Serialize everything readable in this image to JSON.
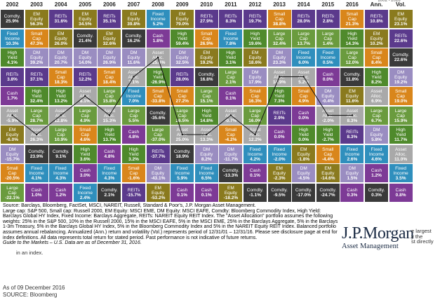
{
  "chart_data": {
    "type": "table",
    "years": [
      "2002",
      "2003",
      "2004",
      "2005",
      "2006",
      "2007",
      "2008",
      "2009",
      "2010",
      "2011",
      "2012",
      "2013",
      "2014",
      "2015",
      "2016"
    ],
    "summary_headers": [
      "Ann.",
      "Vol."
    ],
    "header_clip": "2002 - 2016",
    "asset_colors": {
      "REITs": "#5b3a8c",
      "EM Equity": "#8a7a1e",
      "Small Cap": "#d9861b",
      "Comdty.": "#3a3a3a",
      "Fixed Income": "#2f8fbd",
      "DM Equity": "#9a8dc1",
      "High Yield": "#4f8a2c",
      "Asset Alloc.": "#a9a9a9",
      "Large Cap": "#6a9b3e",
      "Cash": "#7d3a96"
    },
    "columns": [
      {
        "year": "2002",
        "cells": [
          {
            "a": "Comdty.",
            "v": "25.9%"
          },
          {
            "a": "Fixed Income",
            "v": "10.3%"
          },
          {
            "a": "High Yield",
            "v": "4.1%"
          },
          {
            "a": "REITs",
            "v": "3.8%"
          },
          {
            "a": "Cash",
            "v": "1.7%"
          },
          {
            "a": "Asset Alloc.",
            "v": "-5.9%"
          },
          {
            "a": "EM Equity",
            "v": "-6.0%"
          },
          {
            "a": "DM Equity",
            "v": "-15.7%"
          },
          {
            "a": "Small Cap",
            "v": "-20.5%"
          },
          {
            "a": "Large Cap",
            "v": "-22.1%"
          }
        ]
      },
      {
        "year": "2003",
        "cells": [
          {
            "a": "EM Equity",
            "v": "56.3%"
          },
          {
            "a": "Small Cap",
            "v": "47.3%"
          },
          {
            "a": "DM Equity",
            "v": "39.2%"
          },
          {
            "a": "REITs",
            "v": "37.1%"
          },
          {
            "a": "High Yield",
            "v": "32.4%"
          },
          {
            "a": "Large Cap",
            "v": "28.7%"
          },
          {
            "a": "Asset Alloc.",
            "v": "26.3%"
          },
          {
            "a": "Comdty.",
            "v": "23.9%"
          },
          {
            "a": "Fixed Income",
            "v": "4.1%"
          },
          {
            "a": "Cash",
            "v": "1.0%"
          }
        ]
      },
      {
        "year": "2004",
        "cells": [
          {
            "a": "REITs",
            "v": "31.6%"
          },
          {
            "a": "EM Equity",
            "v": "26.0%"
          },
          {
            "a": "DM Equity",
            "v": "20.7%"
          },
          {
            "a": "Small Cap",
            "v": "18.3%"
          },
          {
            "a": "High Yield",
            "v": "13.2%"
          },
          {
            "a": "Asset Alloc.",
            "v": "12.8%"
          },
          {
            "a": "Large Cap",
            "v": "10.9%"
          },
          {
            "a": "Comdty.",
            "v": "9.1%"
          },
          {
            "a": "Fixed Income",
            "v": "4.3%"
          },
          {
            "a": "Cash",
            "v": "1.2%"
          }
        ]
      },
      {
        "year": "2005",
        "cells": [
          {
            "a": "EM Equity",
            "v": "34.5%"
          },
          {
            "a": "Comdty.",
            "v": "21.4%"
          },
          {
            "a": "DM Equity",
            "v": "14.0%"
          },
          {
            "a": "REITs",
            "v": "12.2%"
          },
          {
            "a": "Asset Alloc.",
            "v": "8.1%"
          },
          {
            "a": "Large Cap",
            "v": "4.9%"
          },
          {
            "a": "Small Cap",
            "v": "4.6%"
          },
          {
            "a": "High Yield",
            "v": "3.6%"
          },
          {
            "a": "Cash",
            "v": "3.0%"
          },
          {
            "a": "Fixed Income",
            "v": "2.4%"
          }
        ]
      },
      {
        "year": "2006",
        "cells": [
          {
            "a": "REITs",
            "v": "35.1%"
          },
          {
            "a": "EM Equity",
            "v": "32.6%"
          },
          {
            "a": "DM Equity",
            "v": "26.9%"
          },
          {
            "a": "Small Cap",
            "v": "18.4%"
          },
          {
            "a": "Large Cap",
            "v": "15.8%"
          },
          {
            "a": "Asset Alloc.",
            "v": "15.3%"
          },
          {
            "a": "High Yield",
            "v": "13.7%"
          },
          {
            "a": "Cash",
            "v": "4.8%"
          },
          {
            "a": "Fixed Income",
            "v": "4.3%"
          },
          {
            "a": "Comdty.",
            "v": "2.1%"
          }
        ]
      },
      {
        "year": "2007",
        "cells": [
          {
            "a": "EM Equity",
            "v": "39.8%"
          },
          {
            "a": "Comdty.",
            "v": "16.2%"
          },
          {
            "a": "DM Equity",
            "v": "11.6%"
          },
          {
            "a": "Asset Alloc.",
            "v": "7.1%"
          },
          {
            "a": "Fixed Income",
            "v": "7.0%"
          },
          {
            "a": "Large Cap",
            "v": "5.5%"
          },
          {
            "a": "Cash",
            "v": "4.8%"
          },
          {
            "a": "High Yield",
            "v": "3.2%"
          },
          {
            "a": "Small Cap",
            "v": "-1.6%"
          },
          {
            "a": "REITs",
            "v": "-15.7%"
          }
        ]
      },
      {
        "year": "2008",
        "cells": [
          {
            "a": "Fixed Income",
            "v": "5.2%"
          },
          {
            "a": "Cash",
            "v": "1.8%"
          },
          {
            "a": "Asset Alloc.",
            "v": "-25.4%"
          },
          {
            "a": "High Yield",
            "v": "-26.9%"
          },
          {
            "a": "Small Cap",
            "v": "-33.8%"
          },
          {
            "a": "Comdty.",
            "v": "-35.6%"
          },
          {
            "a": "Large Cap",
            "v": "-37.0%"
          },
          {
            "a": "REITs",
            "v": "-37.7%"
          },
          {
            "a": "DM Equity",
            "v": "-43.1%"
          },
          {
            "a": "EM Equity",
            "v": "-53.2%"
          }
        ]
      },
      {
        "year": "2009",
        "cells": [
          {
            "a": "EM Equity",
            "v": "79.0%"
          },
          {
            "a": "High Yield",
            "v": "59.4%"
          },
          {
            "a": "DM Equity",
            "v": "32.5%"
          },
          {
            "a": "REITs",
            "v": "28.0%"
          },
          {
            "a": "Small Cap",
            "v": "27.2%"
          },
          {
            "a": "Large Cap",
            "v": "26.5%"
          },
          {
            "a": "Asset Alloc.",
            "v": "25.0%"
          },
          {
            "a": "Comdty.",
            "v": "18.9%"
          },
          {
            "a": "Fixed Income",
            "v": "5.9%"
          },
          {
            "a": "Cash",
            "v": "0.1%"
          }
        ]
      },
      {
        "year": "2010",
        "cells": [
          {
            "a": "REITs",
            "v": "27.9%"
          },
          {
            "a": "Small Cap",
            "v": "26.9%"
          },
          {
            "a": "EM Equity",
            "v": "19.2%"
          },
          {
            "a": "Comdty.",
            "v": "16.8%"
          },
          {
            "a": "Large Cap",
            "v": "15.1%"
          },
          {
            "a": "High Yield",
            "v": "14.8%"
          },
          {
            "a": "Asset Alloc.",
            "v": "13.3%"
          },
          {
            "a": "DM Equity",
            "v": "8.2%"
          },
          {
            "a": "Fixed Income",
            "v": "6.5%"
          },
          {
            "a": "Cash",
            "v": "0.1%"
          }
        ]
      },
      {
        "year": "2011",
        "cells": [
          {
            "a": "REITs",
            "v": "8.3%"
          },
          {
            "a": "Fixed Income",
            "v": "7.8%"
          },
          {
            "a": "High Yield",
            "v": "3.1%"
          },
          {
            "a": "Large Cap",
            "v": "2.1%"
          },
          {
            "a": "Cash",
            "v": "0.1%"
          },
          {
            "a": "Asset Alloc.",
            "v": "-0.7%"
          },
          {
            "a": "Small Cap",
            "v": "-4.2%"
          },
          {
            "a": "DM Equity",
            "v": "-11.7%"
          },
          {
            "a": "Comdty.",
            "v": "-13.3%"
          },
          {
            "a": "EM Equity",
            "v": "-18.2%"
          }
        ]
      },
      {
        "year": "2012",
        "cells": [
          {
            "a": "REITs",
            "v": "19.7%"
          },
          {
            "a": "High Yield",
            "v": "19.6%"
          },
          {
            "a": "EM Equity",
            "v": "18.6%"
          },
          {
            "a": "DM Equity",
            "v": "17.9%"
          },
          {
            "a": "Small Cap",
            "v": "16.3%"
          },
          {
            "a": "Large Cap",
            "v": "16.0%"
          },
          {
            "a": "Asset Alloc.",
            "v": "12.2%"
          },
          {
            "a": "Fixed Income",
            "v": "4.2%"
          },
          {
            "a": "Cash",
            "v": "0.1%"
          },
          {
            "a": "Comdty.",
            "v": "-1.1%"
          }
        ]
      },
      {
        "year": "2013",
        "cells": [
          {
            "a": "Small Cap",
            "v": "38.8%"
          },
          {
            "a": "Large Cap",
            "v": "32.4%"
          },
          {
            "a": "DM Equity",
            "v": "23.3%"
          },
          {
            "a": "Asset Alloc.",
            "v": "14.9%"
          },
          {
            "a": "High Yield",
            "v": "7.3%"
          },
          {
            "a": "REITs",
            "v": "2.9%"
          },
          {
            "a": "Cash",
            "v": "0.0%"
          },
          {
            "a": "Fixed Income",
            "v": "-2.0%"
          },
          {
            "a": "EM Equity",
            "v": "-2.3%"
          },
          {
            "a": "Comdty.",
            "v": "-9.5%"
          }
        ]
      },
      {
        "year": "2014",
        "cells": [
          {
            "a": "REITs",
            "v": "28.0%"
          },
          {
            "a": "Large Cap",
            "v": "13.7%"
          },
          {
            "a": "Fixed Income",
            "v": "6.0%"
          },
          {
            "a": "Asset Alloc.",
            "v": "5.2%"
          },
          {
            "a": "Small Cap",
            "v": "4.9%"
          },
          {
            "a": "Cash",
            "v": "0.0%"
          },
          {
            "a": "High Yield",
            "v": "0.0%"
          },
          {
            "a": "EM Equity",
            "v": "-1.8%"
          },
          {
            "a": "DM Equity",
            "v": "-4.5%"
          },
          {
            "a": "Comdty.",
            "v": "-17.0%"
          }
        ]
      },
      {
        "year": "2015",
        "cells": [
          {
            "a": "REITs",
            "v": "2.8%"
          },
          {
            "a": "Large Cap",
            "v": "1.4%"
          },
          {
            "a": "Fixed Income",
            "v": "0.5%"
          },
          {
            "a": "Cash",
            "v": "0.0%"
          },
          {
            "a": "DM Equity",
            "v": "-0.4%"
          },
          {
            "a": "Asset Alloc.",
            "v": "-2.0%"
          },
          {
            "a": "High Yield",
            "v": "-2.7%"
          },
          {
            "a": "Small Cap",
            "v": "-4.4%"
          },
          {
            "a": "EM Equity",
            "v": "-14.6%"
          },
          {
            "a": "Comdty.",
            "v": "-24.7%"
          }
        ]
      },
      {
        "year": "2016",
        "cells": [
          {
            "a": "Small Cap",
            "v": "21.3%"
          },
          {
            "a": "High Yield",
            "v": "14.3%"
          },
          {
            "a": "Large Cap",
            "v": "12.0%"
          },
          {
            "a": "Comdty.",
            "v": "11.8%"
          },
          {
            "a": "EM Equity",
            "v": "11.6%"
          },
          {
            "a": "Asset Alloc.",
            "v": "8.3%"
          },
          {
            "a": "REITs",
            "v": "8.3%"
          },
          {
            "a": "Fixed Income",
            "v": "2.6%"
          },
          {
            "a": "DM Equity",
            "v": "1.5%"
          },
          {
            "a": "Cash",
            "v": "0.3%"
          }
        ]
      },
      {
        "year": "Ann.",
        "cells": [
          {
            "a": "REITs",
            "v": "10.8%"
          },
          {
            "a": "EM Equity",
            "v": "10.2%"
          },
          {
            "a": "Small Cap",
            "v": "8.4%"
          },
          {
            "a": "High Yield",
            "v": "8.2%"
          },
          {
            "a": "Asset Alloc.",
            "v": "6.9%"
          },
          {
            "a": "Large Cap",
            "v": "6.7%"
          },
          {
            "a": "DM Equity",
            "v": "5.8%"
          },
          {
            "a": "Fixed Income",
            "v": "4.6%"
          },
          {
            "a": "Cash",
            "v": "1.2%"
          },
          {
            "a": "Comdty.",
            "v": "0.3%"
          }
        ]
      },
      {
        "year": "Vol.",
        "cells": [
          {
            "a": "EM Equity",
            "v": "23.1%"
          },
          {
            "a": "REITs",
            "v": "22.6%"
          },
          {
            "a": "Comdty.",
            "v": "22.6%"
          },
          {
            "a": "DM Equity",
            "v": "19.2%"
          },
          {
            "a": "Small Cap",
            "v": "19.0%"
          },
          {
            "a": "Large Cap",
            "v": "15.9%"
          },
          {
            "a": "High Yield",
            "v": "11.7%"
          },
          {
            "a": "Asset Alloc.",
            "v": "11.0%"
          },
          {
            "a": "Fixed Income",
            "v": "3.5%"
          },
          {
            "a": "Cash",
            "v": "0.8%"
          }
        ]
      }
    ]
  },
  "notes": {
    "source": "Source: Barclays, Bloomberg, FactSet, MSCI, NAREIT, Russell, Standard & Poor's, J.P. Morgan Asset Management.",
    "definitions": "Large cap: S&P 500, Small cap: Russell 2000, EM Equity: MSCI EME, DM Equity: MSCI EAFE, Comdty: Bloomberg Commodity Index, High Yield: Barclays Global HY Index, Fixed Income: Barclays Aggregate, REITs: NAREIT Equity REIT Index. The \"Asset Allocation\" portfolio assumes the following weights: 25% in the S&P 500, 10% in the Russell 2000, 15% in the MSCI EAFE, 5% in the MSCI EME, 25% in the Barclays Aggregate, 5% in the Barclays 1-3m Treasury, 5% in the Barclays Global HY Index, 5% in the Bloomberg Commodity Index and 5% in the NAREIT Equity REIT Index. Balanced portfolio assumes annual rebalancing. Annualized (Ann.) return and volatility (Vol.) represents period of 12/31/01 – 12/31/16. Please see disclosure page at end for index definitions. All data represents total return for stated period. Past performance is not indicative of future returns.",
    "guide": "Guide to the Markets – U.S. Data are as of December 31, 2016."
  },
  "logo": {
    "brand": "J.P.Morgan",
    "division": "Asset Management",
    "clip": "e largest\ny the\nst directly"
  },
  "fragment_text": "in an index.",
  "footer": {
    "as_of": "As of 09 December 2016",
    "source": "SOURCE: Bloomberg"
  }
}
